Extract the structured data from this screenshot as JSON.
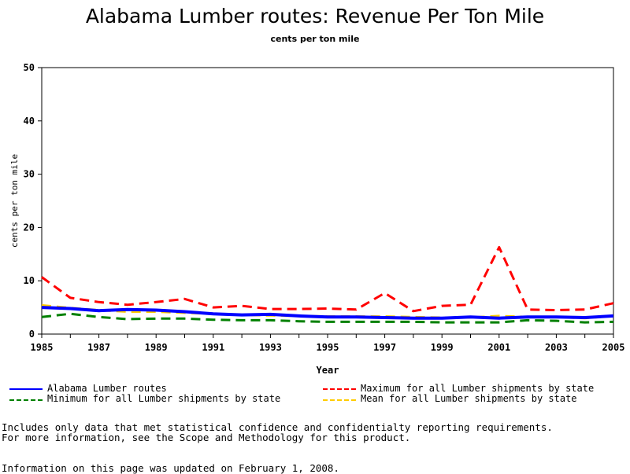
{
  "chart_data": {
    "type": "line",
    "title": "Alabama Lumber routes: Revenue Per Ton Mile",
    "subtitle": "cents per ton mile",
    "xlabel": "Year",
    "ylabel": "cents per ton mile",
    "xlim": [
      1985,
      2005
    ],
    "ylim": [
      0,
      50
    ],
    "x_ticks": [
      1985,
      1987,
      1989,
      1991,
      1993,
      1995,
      1997,
      1999,
      2001,
      2003,
      2005
    ],
    "y_ticks": [
      0,
      10,
      20,
      30,
      40,
      50
    ],
    "x": [
      1985,
      1986,
      1987,
      1988,
      1989,
      1990,
      1991,
      1992,
      1993,
      1994,
      1995,
      1996,
      1997,
      1998,
      1999,
      2000,
      2001,
      2002,
      2003,
      2004,
      2005
    ],
    "grid": false,
    "legend_position": "bottom",
    "series": [
      {
        "name": "Alabama Lumber routes",
        "color": "#0000ff",
        "style": "solid",
        "values": [
          5.0,
          4.8,
          4.4,
          4.6,
          4.5,
          4.2,
          3.8,
          3.6,
          3.7,
          3.4,
          3.2,
          3.2,
          3.1,
          3.0,
          3.0,
          3.2,
          3.0,
          3.2,
          3.2,
          3.1,
          3.4
        ]
      },
      {
        "name": "Maximum for all Lumber shipments by state",
        "color": "#ff0000",
        "style": "dashed",
        "values": [
          10.7,
          6.8,
          6.0,
          5.5,
          6.0,
          6.6,
          5.0,
          5.3,
          4.7,
          4.7,
          4.8,
          4.6,
          7.7,
          4.3,
          5.3,
          5.5,
          16.3,
          4.6,
          4.5,
          4.6,
          5.8
        ]
      },
      {
        "name": "Minimum for all Lumber shipments by state",
        "color": "#008000",
        "style": "dashed",
        "values": [
          3.2,
          3.8,
          3.2,
          2.8,
          2.9,
          2.9,
          2.7,
          2.6,
          2.6,
          2.4,
          2.3,
          2.3,
          2.3,
          2.3,
          2.2,
          2.2,
          2.2,
          2.6,
          2.5,
          2.2,
          2.3
        ]
      },
      {
        "name": "Mean for all Lumber shipments by state",
        "color": "#ffcc00",
        "style": "dashed",
        "values": [
          5.4,
          4.9,
          4.5,
          4.2,
          4.2,
          4.0,
          3.8,
          3.6,
          3.5,
          3.4,
          3.3,
          3.3,
          3.3,
          3.2,
          3.1,
          3.1,
          3.4,
          3.2,
          3.2,
          3.0,
          3.4
        ]
      }
    ]
  },
  "notes": {
    "line1": "Includes only data that met statistical confidence and confidentialty reporting requirements.",
    "line2": "For more information, see the Scope and Methodology for this product.",
    "updated": "Information on this page was updated on February 1, 2008."
  }
}
